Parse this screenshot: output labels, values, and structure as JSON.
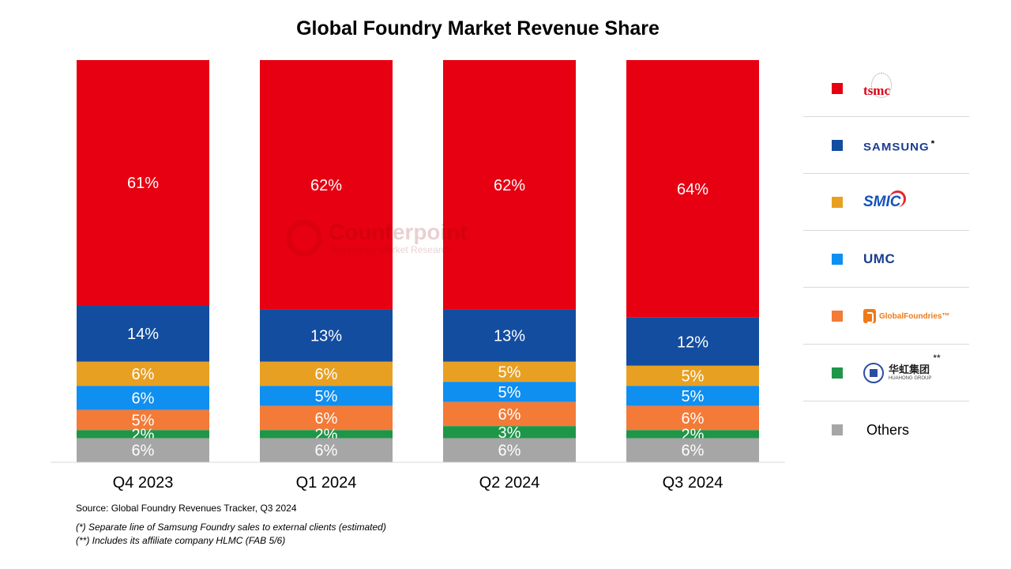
{
  "chart_data": {
    "type": "bar",
    "stacked": true,
    "title": "Global Foundry Market Revenue Share",
    "categories": [
      "Q4 2023",
      "Q1 2024",
      "Q2 2024",
      "Q3 2024"
    ],
    "ylim": [
      0,
      100
    ],
    "series": [
      {
        "name": "TSMC",
        "color": "#e60012",
        "values": [
          61,
          62,
          62,
          64
        ]
      },
      {
        "name": "Samsung",
        "color": "#134da0",
        "values": [
          14,
          13,
          13,
          12
        ]
      },
      {
        "name": "SMIC",
        "color": "#e8a023",
        "values": [
          6,
          6,
          5,
          5
        ]
      },
      {
        "name": "UMC",
        "color": "#0f8ff0",
        "values": [
          6,
          5,
          5,
          5
        ]
      },
      {
        "name": "GlobalFoundries",
        "color": "#f47a37",
        "values": [
          5,
          6,
          6,
          6
        ]
      },
      {
        "name": "Hua Hong Group",
        "color": "#1e9648",
        "values": [
          2,
          2,
          3,
          2
        ]
      },
      {
        "name": "Others",
        "color": "#a6a6a6",
        "values": [
          6,
          6,
          6,
          6
        ]
      }
    ],
    "value_suffix": "%",
    "grid": false,
    "legend": "right"
  },
  "legend": {
    "tsmc_logo": "tsmc",
    "samsung_logo": "SAMSUNG",
    "samsung_mark": "*",
    "smic_logo": "SMIC",
    "umc_logo": "UMC",
    "gf_logo": "GlobalFoundries",
    "gf_mark": "™",
    "huahong_cn": "华虹集团",
    "huahong_en": "HUAHONG GROUP",
    "huahong_mark": "**",
    "others_label": "Others"
  },
  "watermark": {
    "name": "Counterpoint",
    "tagline": "Technology Market Research"
  },
  "footer": {
    "source": "Source: Global Foundry Revenues Tracker, Q3 2024",
    "note1": "(*) Separate line of Samsung Foundry sales to external clients (estimated)",
    "note2": "(**) Includes its affiliate company HLMC (FAB 5/6)"
  }
}
